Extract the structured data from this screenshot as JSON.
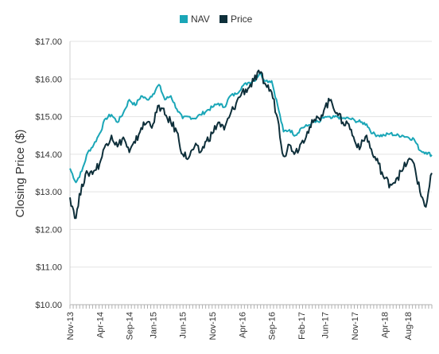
{
  "chart_data": {
    "type": "line",
    "title": "",
    "xlabel": "",
    "ylabel": "Closing Price ($)",
    "ylim": [
      10,
      17
    ],
    "y_ticks": [
      "$17.00",
      "$16.00",
      "$15.00",
      "$14.00",
      "$13.00",
      "$12.00",
      "$11.00",
      "$10.00"
    ],
    "x_ticks": [
      "Nov-13",
      "Apr-14",
      "Sep-14",
      "Jan-15",
      "Jun-15",
      "Nov-15",
      "Apr-16",
      "Sep-16",
      "Feb-17",
      "Jun-17",
      "Nov-17",
      "Apr-18",
      "Aug-18"
    ],
    "x_range": [
      "2013-11",
      "2018-12"
    ],
    "grid": "horizontal",
    "legend_position": "top-center",
    "series": [
      {
        "name": "NAV",
        "color": "#1aa6b7",
        "points": [
          [
            "2013-11",
            13.62
          ],
          [
            "2013-12",
            13.25
          ],
          [
            "2014-01",
            13.55
          ],
          [
            "2014-02",
            14.05
          ],
          [
            "2014-03",
            14.25
          ],
          [
            "2014-04",
            14.55
          ],
          [
            "2014-05",
            14.95
          ],
          [
            "2014-06",
            15.05
          ],
          [
            "2014-07",
            14.85
          ],
          [
            "2014-08",
            15.1
          ],
          [
            "2014-09",
            15.45
          ],
          [
            "2014-10",
            15.3
          ],
          [
            "2014-11",
            15.55
          ],
          [
            "2014-12",
            15.45
          ],
          [
            "2015-01",
            15.6
          ],
          [
            "2015-02",
            15.85
          ],
          [
            "2015-03",
            15.45
          ],
          [
            "2015-04",
            15.55
          ],
          [
            "2015-05",
            15.2
          ],
          [
            "2015-06",
            14.95
          ],
          [
            "2015-07",
            15.0
          ],
          [
            "2015-08",
            14.95
          ],
          [
            "2015-09",
            15.05
          ],
          [
            "2015-10",
            15.15
          ],
          [
            "2015-11",
            15.25
          ],
          [
            "2015-12",
            15.35
          ],
          [
            "2016-01",
            15.25
          ],
          [
            "2016-02",
            15.55
          ],
          [
            "2016-03",
            15.6
          ],
          [
            "2016-04",
            15.8
          ],
          [
            "2016-05",
            15.9
          ],
          [
            "2016-06",
            15.95
          ],
          [
            "2016-07",
            16.15
          ],
          [
            "2016-08",
            15.95
          ],
          [
            "2016-09",
            15.95
          ],
          [
            "2016-10",
            15.3
          ],
          [
            "2016-11",
            14.6
          ],
          [
            "2016-12",
            14.65
          ],
          [
            "2017-01",
            14.5
          ],
          [
            "2017-02",
            14.7
          ],
          [
            "2017-03",
            14.75
          ],
          [
            "2017-04",
            14.85
          ],
          [
            "2017-05",
            14.85
          ],
          [
            "2017-06",
            15.0
          ],
          [
            "2017-07",
            14.95
          ],
          [
            "2017-08",
            15.0
          ],
          [
            "2017-09",
            14.95
          ],
          [
            "2017-10",
            14.95
          ],
          [
            "2017-11",
            14.9
          ],
          [
            "2017-12",
            14.85
          ],
          [
            "2018-01",
            14.8
          ],
          [
            "2018-02",
            14.55
          ],
          [
            "2018-03",
            14.5
          ],
          [
            "2018-04",
            14.5
          ],
          [
            "2018-05",
            14.55
          ],
          [
            "2018-06",
            14.5
          ],
          [
            "2018-07",
            14.5
          ],
          [
            "2018-08",
            14.45
          ],
          [
            "2018-09",
            14.4
          ],
          [
            "2018-10",
            14.1
          ],
          [
            "2018-11",
            14.05
          ],
          [
            "2018-12",
            13.98
          ]
        ]
      },
      {
        "name": "Price",
        "color": "#0e2f3a",
        "points": [
          [
            "2013-11",
            12.85
          ],
          [
            "2013-12",
            12.3
          ],
          [
            "2014-01",
            13.2
          ],
          [
            "2014-02",
            13.5
          ],
          [
            "2014-03",
            13.55
          ],
          [
            "2014-04",
            13.75
          ],
          [
            "2014-05",
            14.25
          ],
          [
            "2014-06",
            14.5
          ],
          [
            "2014-07",
            14.2
          ],
          [
            "2014-08",
            14.45
          ],
          [
            "2014-09",
            14.05
          ],
          [
            "2014-10",
            14.3
          ],
          [
            "2014-11",
            14.7
          ],
          [
            "2014-12",
            14.85
          ],
          [
            "2015-01",
            14.8
          ],
          [
            "2015-02",
            15.3
          ],
          [
            "2015-03",
            15.05
          ],
          [
            "2015-04",
            14.85
          ],
          [
            "2015-05",
            14.6
          ],
          [
            "2015-06",
            14.0
          ],
          [
            "2015-07",
            13.9
          ],
          [
            "2015-08",
            14.2
          ],
          [
            "2015-09",
            14.05
          ],
          [
            "2015-10",
            14.35
          ],
          [
            "2015-11",
            14.55
          ],
          [
            "2015-12",
            14.85
          ],
          [
            "2016-01",
            14.65
          ],
          [
            "2016-02",
            15.05
          ],
          [
            "2016-03",
            15.35
          ],
          [
            "2016-04",
            15.65
          ],
          [
            "2016-05",
            15.75
          ],
          [
            "2016-06",
            15.95
          ],
          [
            "2016-07",
            16.15
          ],
          [
            "2016-08",
            15.85
          ],
          [
            "2016-09",
            15.65
          ],
          [
            "2016-10",
            14.95
          ],
          [
            "2016-11",
            13.95
          ],
          [
            "2016-12",
            14.25
          ],
          [
            "2017-01",
            14.05
          ],
          [
            "2017-02",
            14.3
          ],
          [
            "2017-03",
            14.6
          ],
          [
            "2017-04",
            14.85
          ],
          [
            "2017-05",
            14.95
          ],
          [
            "2017-06",
            15.25
          ],
          [
            "2017-07",
            15.45
          ],
          [
            "2017-08",
            15.1
          ],
          [
            "2017-09",
            14.85
          ],
          [
            "2017-10",
            14.8
          ],
          [
            "2017-11",
            14.35
          ],
          [
            "2017-12",
            14.2
          ],
          [
            "2018-01",
            14.5
          ],
          [
            "2018-02",
            14.0
          ],
          [
            "2018-03",
            13.75
          ],
          [
            "2018-04",
            13.35
          ],
          [
            "2018-05",
            13.2
          ],
          [
            "2018-06",
            13.35
          ],
          [
            "2018-07",
            13.55
          ],
          [
            "2018-08",
            13.85
          ],
          [
            "2018-09",
            13.75
          ],
          [
            "2018-10",
            13.0
          ],
          [
            "2018-11",
            12.6
          ],
          [
            "2018-12",
            13.5
          ]
        ]
      }
    ]
  }
}
